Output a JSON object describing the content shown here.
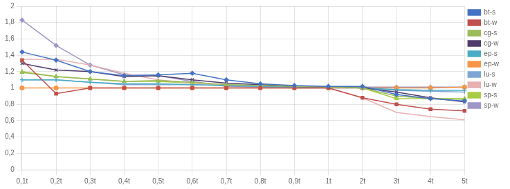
{
  "chart_data": {
    "type": "line",
    "categories": [
      "0,1t",
      "0,2t",
      "0,3t",
      "0,4t",
      "0,5t",
      "0,6t",
      "0,7t",
      "0,8t",
      "0,9t",
      "1t",
      "2t",
      "3t",
      "4t",
      "5t"
    ],
    "series": [
      {
        "name": "bt-s",
        "color": "#4472C4",
        "marker": "diamond",
        "values": [
          1.44,
          1.34,
          1.2,
          1.15,
          1.16,
          1.18,
          1.1,
          1.05,
          1.03,
          1.02,
          1.02,
          0.92,
          0.87,
          0.84
        ]
      },
      {
        "name": "bt-w",
        "color": "#C0504D",
        "marker": "square",
        "values": [
          1.34,
          0.93,
          1.0,
          1.0,
          1.0,
          1.0,
          1.0,
          1.0,
          1.0,
          1.0,
          0.88,
          0.8,
          0.74,
          0.72
        ]
      },
      {
        "name": "cg-s",
        "color": "#9BBB59",
        "marker": "triangle",
        "values": [
          1.19,
          1.14,
          1.11,
          1.08,
          1.09,
          1.07,
          1.04,
          1.03,
          1.02,
          1.01,
          1.0,
          0.9,
          0.87,
          0.86
        ]
      },
      {
        "name": "cg-w",
        "color": "#4F3B6B",
        "marker": "x",
        "values": [
          1.3,
          1.22,
          1.2,
          1.14,
          1.15,
          1.1,
          1.06,
          1.04,
          1.02,
          1.01,
          1.0,
          0.95,
          0.88,
          0.83
        ]
      },
      {
        "name": "ep-s",
        "color": "#4BACC6",
        "marker": "plus",
        "values": [
          1.1,
          1.1,
          1.07,
          1.05,
          1.05,
          1.04,
          1.03,
          1.02,
          1.01,
          1.01,
          1.0,
          0.98,
          0.97,
          0.97
        ]
      },
      {
        "name": "ep-w",
        "color": "#F79646",
        "marker": "circle",
        "values": [
          1.0,
          1.0,
          1.0,
          1.0,
          1.0,
          1.0,
          1.0,
          1.0,
          1.0,
          1.0,
          1.0,
          1.0,
          1.0,
          1.01
        ]
      },
      {
        "name": "lu-s",
        "color": "#7EA6D4",
        "marker": "vline",
        "values": [
          1.1,
          1.1,
          1.07,
          1.04,
          1.04,
          1.04,
          1.03,
          1.02,
          1.01,
          1.0,
          1.0,
          0.97,
          0.96,
          0.95
        ]
      },
      {
        "name": "lu-w",
        "color": "#E8AFAF",
        "marker": "none",
        "values": [
          1.35,
          1.35,
          1.28,
          1.18,
          1.1,
          1.06,
          1.04,
          1.03,
          1.01,
          1.0,
          0.88,
          0.7,
          0.65,
          0.61
        ]
      },
      {
        "name": "sp-s",
        "color": "#AACC44",
        "marker": "triangle",
        "values": [
          1.2,
          1.14,
          1.11,
          1.08,
          1.08,
          1.06,
          1.04,
          1.03,
          1.02,
          1.01,
          1.0,
          0.87,
          0.87,
          0.87
        ]
      },
      {
        "name": "sp-w",
        "color": "#9E97C8",
        "marker": "diamond",
        "values": [
          1.83,
          1.52,
          1.28,
          1.16,
          1.15,
          1.08,
          1.02,
          1.01,
          1.0,
          1.0,
          1.01,
          1.01,
          1.01,
          1.01
        ]
      }
    ],
    "ylim": [
      0,
      2
    ],
    "yticks": [
      0,
      {
        "value": 0.2,
        "label": "0,2"
      },
      {
        "value": 0.4,
        "label": "0,4"
      },
      {
        "value": 0.6,
        "label": "0,6"
      },
      {
        "value": 0.8,
        "label": "0,8"
      },
      1,
      {
        "value": 1.2,
        "label": "1,2"
      },
      {
        "value": 1.4,
        "label": "1,4"
      },
      {
        "value": 1.6,
        "label": "1,6"
      },
      {
        "value": 1.8,
        "label": "1,8"
      },
      2
    ],
    "grid": true,
    "legend": "right"
  }
}
